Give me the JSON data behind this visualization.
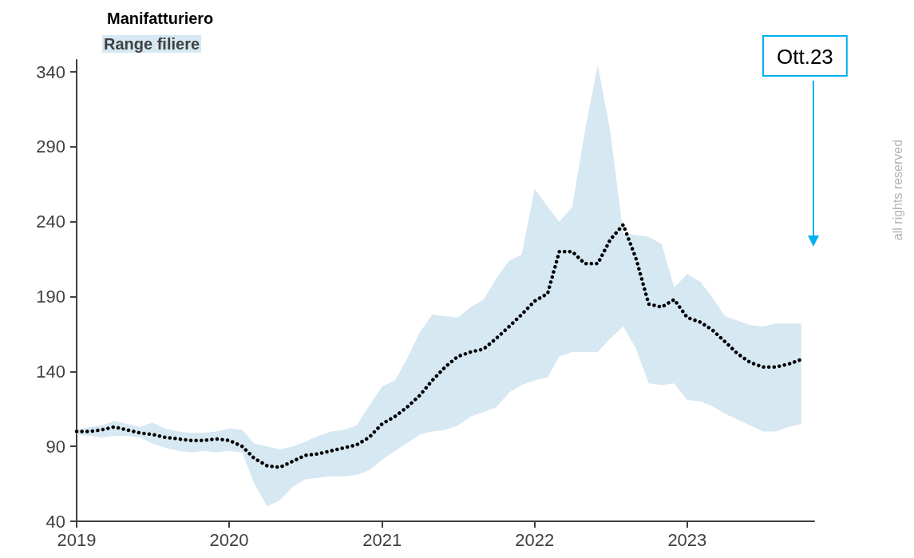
{
  "chart_data": {
    "type": "line",
    "x": [
      "2019-01",
      "2019-02",
      "2019-03",
      "2019-04",
      "2019-05",
      "2019-06",
      "2019-07",
      "2019-08",
      "2019-09",
      "2019-10",
      "2019-11",
      "2019-12",
      "2020-01",
      "2020-02",
      "2020-03",
      "2020-04",
      "2020-05",
      "2020-06",
      "2020-07",
      "2020-08",
      "2020-09",
      "2020-10",
      "2020-11",
      "2020-12",
      "2021-01",
      "2021-02",
      "2021-03",
      "2021-04",
      "2021-05",
      "2021-06",
      "2021-07",
      "2021-08",
      "2021-09",
      "2021-10",
      "2021-11",
      "2021-12",
      "2022-01",
      "2022-02",
      "2022-03",
      "2022-04",
      "2022-05",
      "2022-06",
      "2022-07",
      "2022-08",
      "2022-09",
      "2022-10",
      "2022-11",
      "2022-12",
      "2023-01",
      "2023-02",
      "2023-03",
      "2023-04",
      "2023-05",
      "2023-06",
      "2023-07",
      "2023-08",
      "2023-09",
      "2023-10"
    ],
    "series": [
      {
        "name": "Manifatturiero",
        "color": "#000000",
        "line_style": "dotted",
        "values": [
          100,
          100,
          101,
          103,
          101,
          99,
          98,
          96,
          95,
          94,
          94,
          95,
          94,
          90,
          82,
          77,
          76,
          80,
          84,
          85,
          87,
          89,
          91,
          96,
          105,
          110,
          116,
          124,
          134,
          143,
          150,
          153,
          155,
          162,
          170,
          178,
          187,
          192,
          220,
          220,
          212,
          212,
          228,
          238,
          215,
          185,
          183,
          188,
          176,
          173,
          168,
          160,
          152,
          146,
          143,
          143,
          145,
          148
        ],
        "upper": [
          101,
          103,
          104,
          107,
          105,
          103,
          106,
          102,
          100,
          99,
          99,
          100,
          102,
          101,
          92,
          90,
          88,
          90,
          93,
          97,
          100,
          101,
          104,
          117,
          130,
          134,
          148,
          166,
          178,
          177,
          176,
          183,
          188,
          202,
          214,
          218,
          262,
          250,
          240,
          250,
          300,
          345,
          300,
          232,
          231,
          230,
          225,
          196,
          205,
          200,
          190,
          177,
          174,
          171,
          170,
          172,
          172,
          172
        ],
        "lower": [
          98,
          97,
          96,
          97,
          97,
          96,
          92,
          89,
          87,
          86,
          87,
          86,
          87,
          86,
          65,
          50,
          54,
          63,
          68,
          69,
          70,
          70,
          71,
          74,
          81,
          87,
          92,
          98,
          100,
          101,
          104,
          110,
          113,
          116,
          126,
          131,
          134,
          136,
          150,
          153,
          153,
          153,
          162,
          170,
          155,
          132,
          131,
          132,
          121,
          120,
          117,
          112,
          108,
          104,
          100,
          100,
          103,
          105
        ]
      }
    ],
    "xlim": [
      "2019-01",
      "2023-11"
    ],
    "xticks": [
      "2019",
      "2020",
      "2021",
      "2022",
      "2023"
    ],
    "ylim": [
      40,
      348
    ],
    "yticks": [
      40,
      90,
      140,
      190,
      240,
      290,
      340
    ],
    "grid": false,
    "legend": "top left",
    "marker": "none",
    "annotations": [
      "Range filiere",
      "Ott.23",
      "all rights reserved"
    ]
  }
}
